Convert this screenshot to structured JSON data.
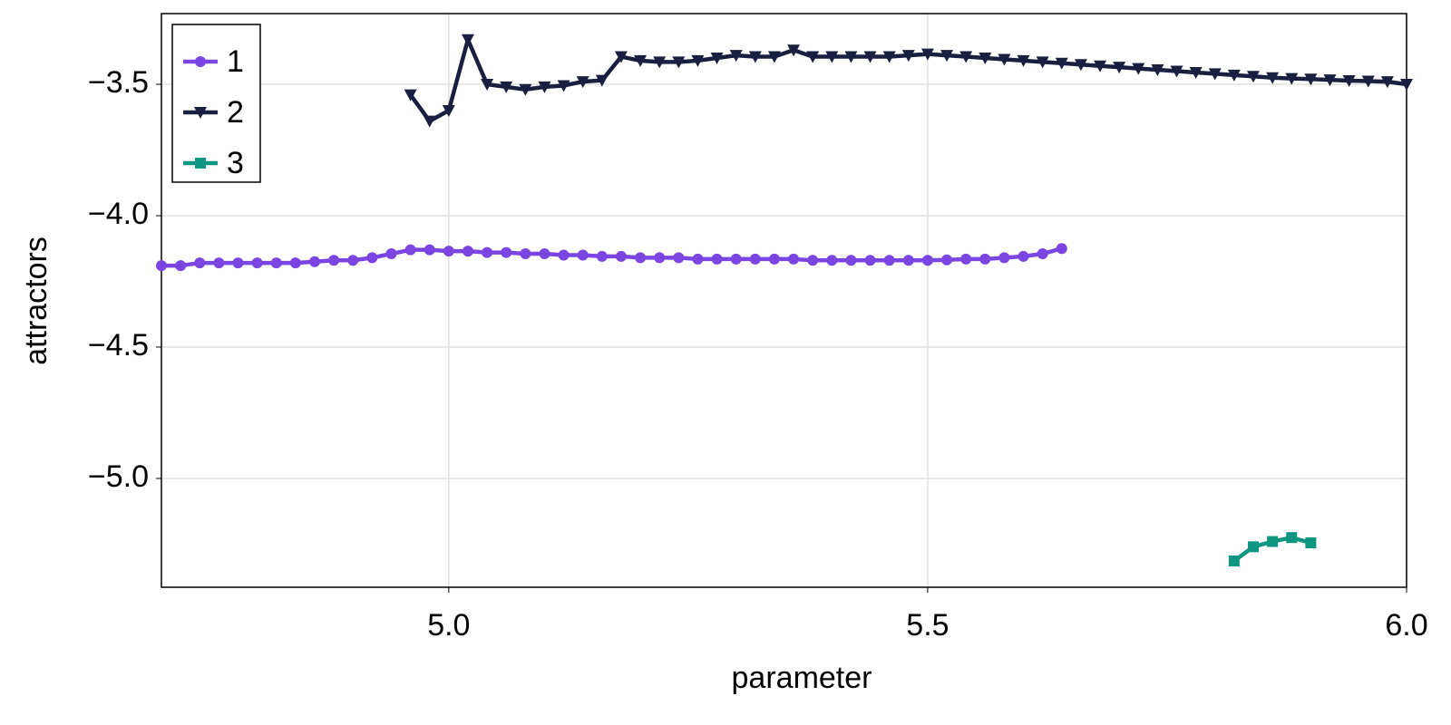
{
  "chart_data": {
    "type": "line",
    "x_label": "parameter",
    "y_label": "attractors",
    "xlim": [
      4.7,
      6.0
    ],
    "ylim": [
      -5.414,
      -3.231
    ],
    "xticks": [
      {
        "value": 5.0,
        "label": "5.0"
      },
      {
        "value": 5.5,
        "label": "5.5"
      },
      {
        "value": 6.0,
        "label": "6.0"
      }
    ],
    "yticks": [
      {
        "value": -5.0,
        "label": "−5.0"
      },
      {
        "value": -4.5,
        "label": "−4.5"
      },
      {
        "value": -4.0,
        "label": "−4.0"
      },
      {
        "value": -3.5,
        "label": "−3.5"
      }
    ],
    "grid": true,
    "legend": "top-left",
    "series": [
      {
        "name": "1",
        "color": "#7a45e0",
        "marker": "circle",
        "x": [
          4.7,
          4.72,
          4.74,
          4.76,
          4.78,
          4.8,
          4.82,
          4.84,
          4.86,
          4.88,
          4.9,
          4.92,
          4.94,
          4.96,
          4.98,
          5.0,
          5.02,
          5.04,
          5.06,
          5.08,
          5.1,
          5.12,
          5.14,
          5.16,
          5.18,
          5.2,
          5.22,
          5.24,
          5.26,
          5.28,
          5.3,
          5.32,
          5.34,
          5.36,
          5.38,
          5.4,
          5.42,
          5.44,
          5.46,
          5.48,
          5.5,
          5.52,
          5.54,
          5.56,
          5.58,
          5.6,
          5.62,
          5.64
        ],
        "values": [
          -4.19,
          -4.19,
          -4.18,
          -4.18,
          -4.18,
          -4.18,
          -4.18,
          -4.18,
          -4.175,
          -4.17,
          -4.17,
          -4.16,
          -4.145,
          -4.13,
          -4.13,
          -4.135,
          -4.135,
          -4.14,
          -4.14,
          -4.145,
          -4.145,
          -4.15,
          -4.15,
          -4.155,
          -4.155,
          -4.16,
          -4.16,
          -4.16,
          -4.165,
          -4.165,
          -4.165,
          -4.165,
          -4.165,
          -4.165,
          -4.17,
          -4.17,
          -4.17,
          -4.17,
          -4.17,
          -4.17,
          -4.17,
          -4.168,
          -4.165,
          -4.165,
          -4.16,
          -4.155,
          -4.145,
          -4.125
        ]
      },
      {
        "name": "2",
        "color": "#1a1f40",
        "marker": "triangle-down",
        "x": [
          4.96,
          4.98,
          5.0,
          5.02,
          5.04,
          5.06,
          5.08,
          5.1,
          5.12,
          5.14,
          5.16,
          5.18,
          5.2,
          5.22,
          5.24,
          5.26,
          5.28,
          5.3,
          5.32,
          5.34,
          5.36,
          5.38,
          5.4,
          5.42,
          5.44,
          5.46,
          5.48,
          5.5,
          5.52,
          5.54,
          5.56,
          5.58,
          5.6,
          5.62,
          5.64,
          5.66,
          5.68,
          5.7,
          5.72,
          5.74,
          5.76,
          5.78,
          5.8,
          5.82,
          5.84,
          5.86,
          5.88,
          5.9,
          5.92,
          5.94,
          5.96,
          5.98,
          6.0
        ],
        "values": [
          -3.54,
          -3.64,
          -3.6,
          -3.33,
          -3.5,
          -3.51,
          -3.52,
          -3.51,
          -3.505,
          -3.49,
          -3.485,
          -3.395,
          -3.41,
          -3.415,
          -3.415,
          -3.41,
          -3.4,
          -3.39,
          -3.395,
          -3.395,
          -3.37,
          -3.395,
          -3.395,
          -3.395,
          -3.395,
          -3.395,
          -3.39,
          -3.385,
          -3.39,
          -3.395,
          -3.4,
          -3.405,
          -3.41,
          -3.415,
          -3.42,
          -3.425,
          -3.43,
          -3.435,
          -3.44,
          -3.445,
          -3.45,
          -3.455,
          -3.46,
          -3.465,
          -3.47,
          -3.475,
          -3.478,
          -3.48,
          -3.483,
          -3.486,
          -3.488,
          -3.49,
          -3.5
        ]
      },
      {
        "name": "3",
        "color": "#0f9680",
        "marker": "square",
        "x": [
          5.82,
          5.84,
          5.86,
          5.88,
          5.9
        ],
        "values": [
          -5.314,
          -5.26,
          -5.24,
          -5.225,
          -5.245
        ]
      }
    ]
  }
}
